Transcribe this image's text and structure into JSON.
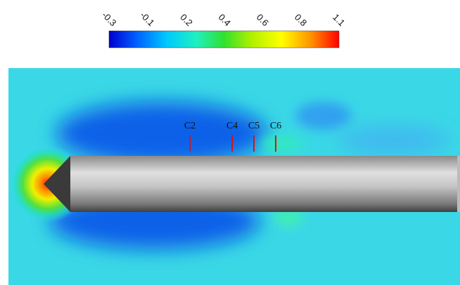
{
  "colorbar": {
    "ticks": [
      "-0.3",
      "-0.1",
      "0.2",
      "0.4",
      "0.6",
      "0.8",
      "1.1"
    ]
  },
  "probes": [
    "C2",
    "C4",
    "C5",
    "C6"
  ]
}
